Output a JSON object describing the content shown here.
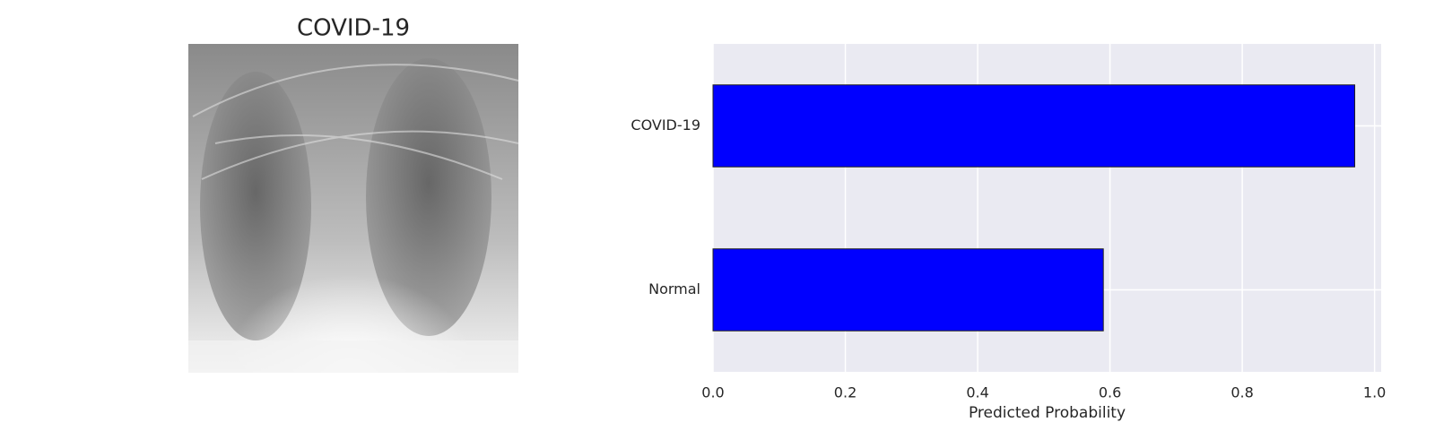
{
  "chart_data": [
    {
      "type": "image",
      "title": "COVID-19"
    },
    {
      "type": "barh",
      "categories": [
        "COVID-19",
        "Normal"
      ],
      "values": [
        0.97,
        0.59
      ],
      "color": "#0000ff",
      "xlabel": "Predicted Probability",
      "xlim": [
        0,
        1.01
      ],
      "xticks": [
        {
          "value": 0,
          "label": "0.0"
        },
        0.2,
        0.4,
        0.6,
        0.8,
        {
          "value": 1,
          "label": "1.0"
        }
      ],
      "grid": true
    }
  ]
}
